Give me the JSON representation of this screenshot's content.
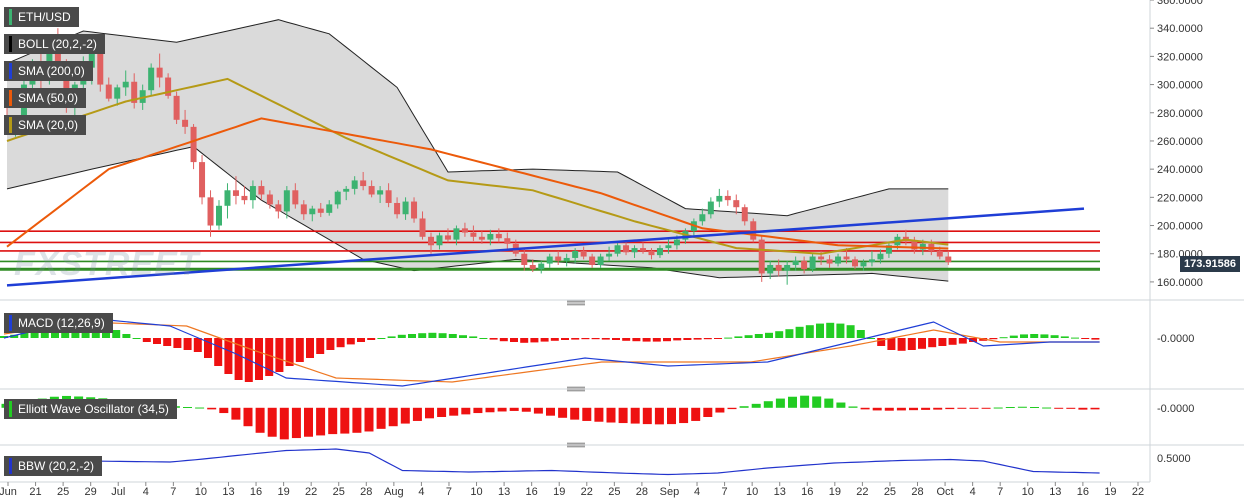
{
  "app": {
    "symbol": "ETH/USD",
    "watermark": "FXSTREET",
    "current_price": "173.91586"
  },
  "legend": {
    "boll": "BOLL (20,2,-2)",
    "sma200": "SMA (200,0)",
    "sma50": "SMA (50,0)",
    "sma20": "SMA (20,0)",
    "macd": "MACD (12,26,9)",
    "ewo": "Elliott Wave Oscillator (34,5)",
    "bbw": "BBW (20,2,-2)"
  },
  "colors": {
    "up": "#3cb371",
    "down": "#e06060",
    "sma200": "#1f3ed6",
    "sma50": "#ec5a0a",
    "sma20": "#b59a16",
    "band_fill": "#d6d6d6",
    "hist_up": "#22cc22",
    "hist_down": "#ee1111",
    "macd_line": "#1f3ed6",
    "signal_line": "#ee7722",
    "bbw_line": "#2233cc",
    "support_green": "#2e8b22",
    "resistance_red": "#dd1111",
    "price_tag": "#2b3a4a"
  },
  "chart_data": {
    "type": "candlestick",
    "title": "ETH/USD",
    "x_tick_labels": [
      "Jun",
      "21",
      "25",
      "29",
      "Jul",
      "4",
      "7",
      "10",
      "13",
      "16",
      "19",
      "22",
      "25",
      "28",
      "Aug",
      "4",
      "7",
      "10",
      "13",
      "16",
      "19",
      "22",
      "25",
      "28",
      "Sep",
      "4",
      "7",
      "10",
      "13",
      "16",
      "19",
      "22",
      "25",
      "28",
      "Oct",
      "4",
      "7",
      "10",
      "13",
      "16",
      "19",
      "22"
    ],
    "price_axis": {
      "ylim": [
        150,
        360
      ],
      "ticks": [
        "160.0000",
        "180.0000",
        "200.0000",
        "220.0000",
        "240.0000",
        "260.0000",
        "280.0000",
        "300.0000",
        "320.0000",
        "340.0000",
        "360.0000"
      ]
    },
    "horizontal_levels": {
      "resistance": [
        196,
        188,
        182
      ],
      "support": [
        174.5,
        169.5,
        168.5
      ]
    },
    "candles_ohlc": [
      [
        277,
        285,
        266,
        268
      ],
      [
        268,
        274,
        263,
        270
      ],
      [
        270,
        305,
        268,
        300
      ],
      [
        300,
        318,
        292,
        305
      ],
      [
        305,
        322,
        294,
        303
      ],
      [
        303,
        335,
        300,
        328
      ],
      [
        328,
        340,
        305,
        310
      ],
      [
        310,
        318,
        280,
        292
      ],
      [
        292,
        302,
        276,
        300
      ],
      [
        300,
        320,
        290,
        312
      ],
      [
        312,
        330,
        300,
        322
      ],
      [
        322,
        324,
        295,
        300
      ],
      [
        300,
        305,
        288,
        290
      ],
      [
        290,
        300,
        285,
        298
      ],
      [
        298,
        310,
        292,
        302
      ],
      [
        302,
        308,
        283,
        287
      ],
      [
        287,
        300,
        282,
        296
      ],
      [
        296,
        315,
        292,
        312
      ],
      [
        312,
        322,
        298,
        305
      ],
      [
        305,
        308,
        290,
        292
      ],
      [
        292,
        295,
        272,
        275
      ],
      [
        275,
        282,
        265,
        270
      ],
      [
        270,
        272,
        240,
        245
      ],
      [
        245,
        250,
        215,
        220
      ],
      [
        220,
        225,
        192,
        200
      ],
      [
        200,
        218,
        197,
        214
      ],
      [
        214,
        230,
        205,
        225
      ],
      [
        225,
        235,
        215,
        221
      ],
      [
        221,
        228,
        215,
        218
      ],
      [
        218,
        232,
        212,
        228
      ],
      [
        228,
        232,
        218,
        222
      ],
      [
        222,
        225,
        212,
        215
      ],
      [
        215,
        218,
        205,
        210
      ],
      [
        210,
        228,
        205,
        225
      ],
      [
        225,
        230,
        212,
        215
      ],
      [
        215,
        218,
        204,
        208
      ],
      [
        208,
        214,
        203,
        212
      ],
      [
        212,
        216,
        206,
        209
      ],
      [
        209,
        218,
        207,
        215
      ],
      [
        215,
        225,
        212,
        224
      ],
      [
        224,
        228,
        218,
        226
      ],
      [
        226,
        235,
        222,
        232
      ],
      [
        232,
        238,
        225,
        228
      ],
      [
        228,
        232,
        220,
        222
      ],
      [
        222,
        228,
        216,
        225
      ],
      [
        225,
        230,
        213,
        216
      ],
      [
        216,
        220,
        205,
        208
      ],
      [
        208,
        220,
        204,
        217
      ],
      [
        217,
        220,
        202,
        205
      ],
      [
        205,
        210,
        190,
        192
      ],
      [
        192,
        195,
        180,
        186
      ],
      [
        186,
        195,
        183,
        193
      ],
      [
        193,
        198,
        188,
        190
      ],
      [
        190,
        200,
        186,
        198
      ],
      [
        198,
        202,
        192,
        195
      ],
      [
        195,
        200,
        189,
        192
      ],
      [
        192,
        196,
        187,
        190
      ],
      [
        190,
        197,
        186,
        194
      ],
      [
        194,
        198,
        188,
        191
      ],
      [
        191,
        195,
        182,
        187
      ],
      [
        187,
        190,
        178,
        180
      ],
      [
        180,
        184,
        168,
        172
      ],
      [
        172,
        176,
        167,
        169
      ],
      [
        169,
        175,
        166,
        173
      ],
      [
        173,
        180,
        170,
        178
      ],
      [
        178,
        182,
        172,
        175
      ],
      [
        175,
        180,
        171,
        177
      ],
      [
        177,
        184,
        173,
        182
      ],
      [
        182,
        185,
        176,
        178
      ],
      [
        178,
        180,
        170,
        172
      ],
      [
        172,
        180,
        170,
        178
      ],
      [
        178,
        185,
        175,
        180
      ],
      [
        180,
        188,
        178,
        186
      ],
      [
        186,
        188,
        179,
        181
      ],
      [
        181,
        186,
        177,
        184
      ],
      [
        184,
        188,
        180,
        182
      ],
      [
        182,
        184,
        176,
        179
      ],
      [
        179,
        186,
        177,
        184
      ],
      [
        184,
        190,
        180,
        186
      ],
      [
        186,
        193,
        183,
        190
      ],
      [
        190,
        198,
        187,
        196
      ],
      [
        196,
        205,
        193,
        203
      ],
      [
        203,
        212,
        200,
        208
      ],
      [
        208,
        220,
        205,
        217
      ],
      [
        217,
        226,
        213,
        221
      ],
      [
        221,
        225,
        214,
        218
      ],
      [
        218,
        222,
        208,
        213
      ],
      [
        213,
        215,
        200,
        203
      ],
      [
        203,
        205,
        188,
        190
      ],
      [
        190,
        193,
        160,
        166
      ],
      [
        166,
        175,
        162,
        172
      ],
      [
        172,
        176,
        164,
        168
      ],
      [
        168,
        175,
        158,
        172
      ],
      [
        172,
        178,
        168,
        175
      ],
      [
        175,
        178,
        166,
        169
      ],
      [
        169,
        180,
        167,
        178
      ],
      [
        178,
        182,
        172,
        176
      ],
      [
        176,
        179,
        170,
        173
      ],
      [
        173,
        180,
        171,
        178
      ],
      [
        178,
        184,
        173,
        176
      ],
      [
        176,
        178,
        169,
        171
      ],
      [
        171,
        176,
        168,
        174
      ],
      [
        174,
        182,
        171,
        176
      ],
      [
        176,
        183,
        173,
        180
      ],
      [
        180,
        188,
        177,
        186
      ],
      [
        186,
        194,
        183,
        192
      ],
      [
        192,
        197,
        186,
        189
      ],
      [
        189,
        192,
        180,
        183
      ],
      [
        183,
        190,
        179,
        187
      ],
      [
        187,
        190,
        179,
        182
      ],
      [
        182,
        185,
        176,
        178
      ],
      [
        178,
        182,
        172,
        174
      ]
    ],
    "sma200": [
      [
        0,
        157.5
      ],
      [
        127,
        212
      ]
    ],
    "sma50": [
      [
        0,
        185
      ],
      [
        12,
        240
      ],
      [
        30,
        276
      ],
      [
        50,
        254
      ],
      [
        70,
        223
      ],
      [
        82,
        198
      ],
      [
        98,
        186
      ],
      [
        115,
        183
      ],
      [
        127,
        182
      ]
    ],
    "sma20": [
      [
        0,
        260
      ],
      [
        14,
        288
      ],
      [
        26,
        304
      ],
      [
        40,
        262
      ],
      [
        52,
        232
      ],
      [
        62,
        225
      ],
      [
        74,
        203
      ],
      [
        86,
        184
      ],
      [
        96,
        180
      ],
      [
        106,
        190
      ],
      [
        116,
        183
      ],
      [
        124,
        178
      ]
    ],
    "bollinger_upper": [
      [
        0,
        315
      ],
      [
        9,
        338
      ],
      [
        20,
        330
      ],
      [
        32,
        346
      ],
      [
        38,
        336
      ],
      [
        46,
        298
      ],
      [
        52,
        238
      ],
      [
        62,
        240
      ],
      [
        72,
        238
      ],
      [
        80,
        212
      ],
      [
        92,
        207
      ],
      [
        104,
        226
      ],
      [
        116,
        226
      ],
      [
        127,
        204
      ]
    ],
    "bollinger_lower": [
      [
        0,
        226
      ],
      [
        10,
        240
      ],
      [
        22,
        256
      ],
      [
        30,
        218
      ],
      [
        42,
        176
      ],
      [
        48,
        168
      ],
      [
        60,
        176
      ],
      [
        76,
        170
      ],
      [
        84,
        163
      ],
      [
        102,
        166
      ],
      [
        112,
        160
      ],
      [
        120,
        168
      ],
      [
        127,
        171
      ]
    ],
    "macd": {
      "name": "MACD (12,26,9)",
      "zero_label": "-0.0000",
      "histogram": [
        0.5,
        0.8,
        1.5,
        2.2,
        3.2,
        3.8,
        4.2,
        4.5,
        4.0,
        3.5,
        3.0,
        2.0,
        1.0,
        0.0,
        -1.0,
        -1.5,
        -2.0,
        -2.5,
        -3.0,
        -3.5,
        -5.0,
        -7.0,
        -9.0,
        -10.5,
        -11.0,
        -10.5,
        -9.5,
        -8.5,
        -7.0,
        -6.0,
        -5.0,
        -4.0,
        -3.0,
        -2.3,
        -1.6,
        -1.0,
        -0.5,
        0.0,
        0.4,
        0.8,
        1.0,
        1.2,
        1.3,
        1.2,
        1.0,
        0.7,
        0.4,
        0.0,
        -0.4,
        -0.8,
        -1.0,
        -1.2,
        -1.1,
        -0.9,
        -0.7,
        -0.5,
        -0.4,
        -0.3,
        -0.3,
        -0.4,
        -0.5,
        -0.7,
        -0.8,
        -0.9,
        -0.9,
        -0.8,
        -0.6,
        -0.5,
        -0.4,
        -0.3,
        -0.1,
        0.1,
        0.4,
        0.7,
        1.0,
        1.3,
        1.7,
        2.2,
        2.8,
        3.2,
        3.6,
        3.8,
        3.6,
        3.2,
        2.0,
        0.0,
        -2.0,
        -3.0,
        -3.2,
        -3.0,
        -2.7,
        -2.3,
        -2.0,
        -1.7,
        -1.4,
        -1.0,
        -0.7,
        -0.3,
        0.2,
        0.6,
        0.9,
        1.0,
        0.9,
        0.7,
        0.4,
        0.1,
        -0.2,
        -0.4
      ],
      "macd_line": [
        [
          0,
          0
        ],
        [
          10,
          5
        ],
        [
          20,
          3
        ],
        [
          28,
          -4
        ],
        [
          34,
          -10
        ],
        [
          48,
          -12
        ],
        [
          70,
          -5
        ],
        [
          80,
          -7
        ],
        [
          92,
          -6
        ],
        [
          104,
          0
        ],
        [
          112,
          4
        ],
        [
          118,
          -2
        ],
        [
          126,
          -1
        ],
        [
          132,
          -1
        ]
      ],
      "signal_line": [
        [
          0,
          1
        ],
        [
          10,
          4
        ],
        [
          22,
          3
        ],
        [
          30,
          -3
        ],
        [
          40,
          -10
        ],
        [
          54,
          -11
        ],
        [
          72,
          -6
        ],
        [
          90,
          -6
        ],
        [
          102,
          -2
        ],
        [
          112,
          2
        ],
        [
          120,
          -1
        ],
        [
          132,
          -1
        ]
      ]
    },
    "elliott_wave": {
      "name": "Elliott Wave Oscillator (34,5)",
      "zero_label": "-0.0000",
      "histogram": [
        1.5,
        2.0,
        2.8,
        3.5,
        4.2,
        4.5,
        4.3,
        4.0,
        3.6,
        3.2,
        2.6,
        2.0,
        1.5,
        1.0,
        0.6,
        0.3,
        0.1,
        -0.6,
        -2.0,
        -4.5,
        -7.0,
        -9.5,
        -11.0,
        -12.0,
        -11.5,
        -11.0,
        -10.5,
        -10.0,
        -9.8,
        -9.5,
        -9.0,
        -8.0,
        -7.0,
        -6.0,
        -5.0,
        -4.0,
        -3.5,
        -3.0,
        -2.5,
        -2.0,
        -1.7,
        -1.4,
        -1.2,
        -1.5,
        -2.2,
        -3.0,
        -3.8,
        -4.5,
        -5.0,
        -5.3,
        -5.6,
        -5.8,
        -6.0,
        -6.2,
        -6.3,
        -6.2,
        -5.8,
        -5.0,
        -3.5,
        -1.8,
        -0.5,
        0.6,
        1.5,
        2.5,
        3.5,
        4.2,
        4.6,
        4.3,
        3.5,
        2.0,
        0.5,
        -0.6,
        -1.0,
        -1.1,
        -1.0,
        -0.9,
        -0.8,
        -0.7,
        -0.5,
        -0.3,
        -0.2,
        -0.1,
        0.1,
        0.3,
        0.4,
        0.3,
        0.1,
        -0.1,
        -0.4,
        -0.7,
        -0.6
      ]
    },
    "bbw": {
      "name": "BBW (20,2,-2)",
      "tick_label": "0.5000",
      "line": [
        [
          0,
          0.5
        ],
        [
          10,
          0.44
        ],
        [
          20,
          0.42
        ],
        [
          24,
          0.48
        ],
        [
          28,
          0.55
        ],
        [
          34,
          0.65
        ],
        [
          40,
          0.68
        ],
        [
          44,
          0.6
        ],
        [
          48,
          0.25
        ],
        [
          56,
          0.22
        ],
        [
          66,
          0.25
        ],
        [
          74,
          0.2
        ],
        [
          80,
          0.17
        ],
        [
          86,
          0.2
        ],
        [
          92,
          0.3
        ],
        [
          100,
          0.4
        ],
        [
          108,
          0.45
        ],
        [
          114,
          0.47
        ],
        [
          118,
          0.44
        ],
        [
          124,
          0.23
        ],
        [
          132,
          0.2
        ]
      ]
    }
  }
}
